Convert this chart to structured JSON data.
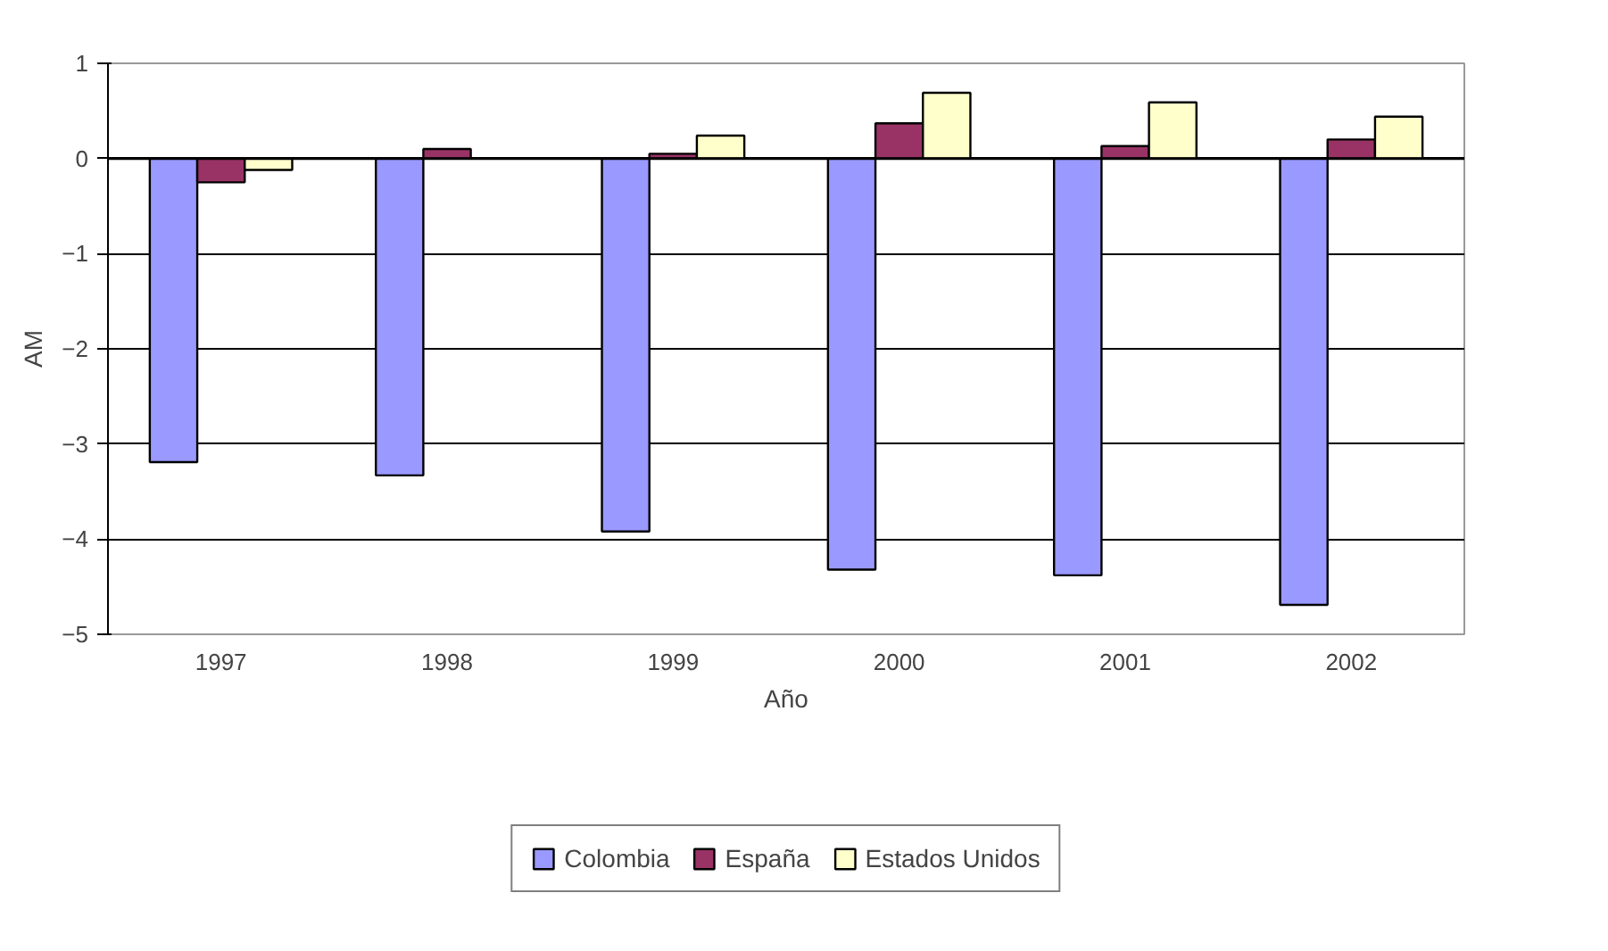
{
  "chart_data": {
    "type": "bar",
    "xlabel": "Año",
    "ylabel": "AM",
    "categories": [
      "1997",
      "1998",
      "1999",
      "2000",
      "2001",
      "2002"
    ],
    "series": [
      {
        "name": "Colombia",
        "color": "#9999ff",
        "values": [
          -3.19,
          -3.33,
          -3.92,
          -4.32,
          -4.38,
          -4.69
        ]
      },
      {
        "name": "España",
        "color": "#993366",
        "values": [
          -0.25,
          0.1,
          0.05,
          0.37,
          0.13,
          0.2
        ]
      },
      {
        "name": "Estados Unidos",
        "color": "#ffffcc",
        "values": [
          -0.12,
          null,
          0.24,
          0.69,
          0.59,
          0.44
        ]
      }
    ],
    "ylim": [
      -5,
      1
    ],
    "yticks": [
      -5,
      -4,
      -3,
      -2,
      -1,
      0,
      1
    ],
    "grid": "y",
    "legend": "bottom"
  }
}
